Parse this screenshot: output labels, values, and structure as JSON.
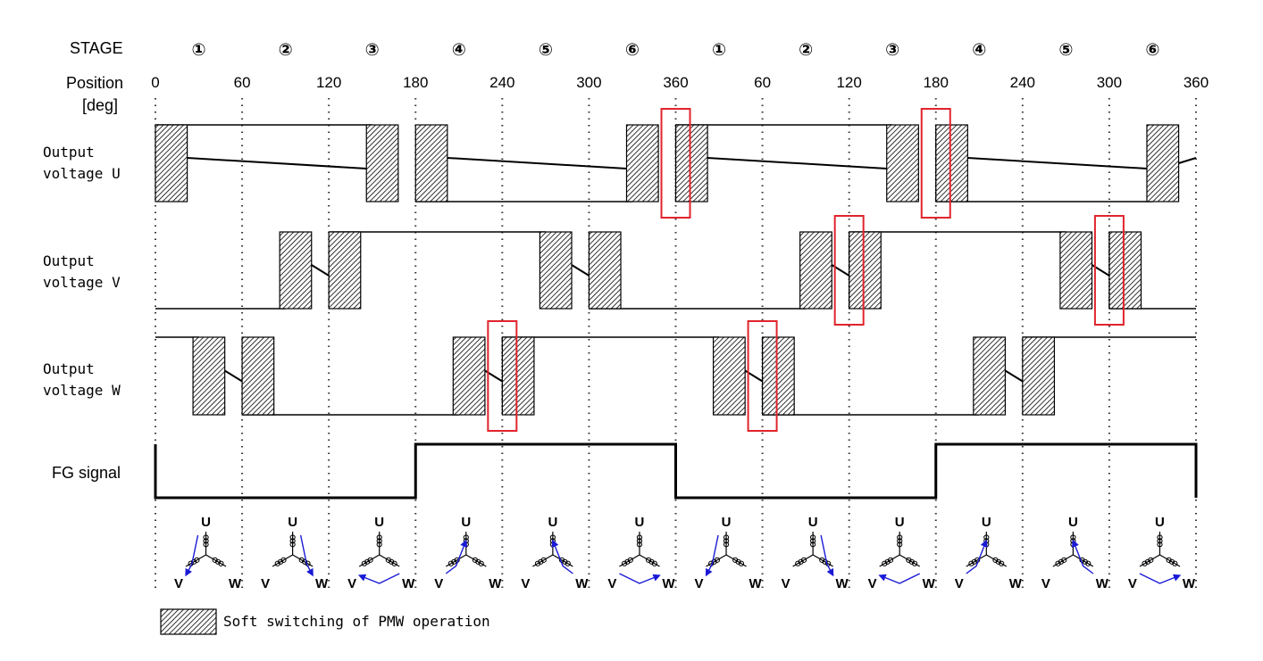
{
  "header": {
    "stage_label": "STAGE",
    "position_label": "Position",
    "position_unit": "[deg]"
  },
  "stages": [
    "①",
    "②",
    "③",
    "④",
    "⑤",
    "⑥",
    "①",
    "②",
    "③",
    "④",
    "⑤",
    "⑥"
  ],
  "positions": [
    "0",
    "60",
    "120",
    "180",
    "240",
    "300",
    "360",
    "60",
    "120",
    "180",
    "240",
    "300",
    "360"
  ],
  "rows": {
    "u": [
      "Output",
      "voltage U"
    ],
    "v": [
      "Output",
      "voltage V"
    ],
    "w": [
      "Output",
      "voltage W"
    ],
    "fg": "FG signal"
  },
  "coil_labels": {
    "u": "U",
    "v": "V",
    "w": "W"
  },
  "legend": {
    "text": "Soft switching of PMW operation"
  },
  "colors": {
    "highlight": "#e0242c",
    "current_arrow": "#1a1ad6",
    "line": "#000000"
  },
  "chart_data": {
    "type": "timing",
    "x_unit": "deg",
    "x_range": [
      0,
      720
    ],
    "stage_width_deg": 60,
    "phase_u": {
      "levels": [
        {
          "from": 0,
          "to": 150,
          "level": "high"
        },
        {
          "from": 180,
          "to": 330,
          "level": "low"
        },
        {
          "from": 360,
          "to": 510,
          "level": "high"
        },
        {
          "from": 540,
          "to": 690,
          "level": "low"
        }
      ],
      "pwm_blocks": [
        [
          0,
          22
        ],
        [
          146,
          168
        ],
        [
          180,
          202
        ],
        [
          326,
          348
        ],
        [
          360,
          382
        ],
        [
          506,
          528
        ],
        [
          540,
          562
        ],
        [
          686,
          708
        ]
      ],
      "soft_switch_marks": [
        360,
        540
      ]
    },
    "phase_v": {
      "levels": [
        {
          "from": 0,
          "to": 90,
          "level": "low"
        },
        {
          "from": 120,
          "to": 270,
          "level": "high"
        },
        {
          "from": 300,
          "to": 450,
          "level": "low"
        },
        {
          "from": 480,
          "to": 630,
          "level": "high"
        },
        {
          "from": 660,
          "to": 720,
          "level": "low"
        }
      ],
      "pwm_blocks": [
        [
          86,
          108
        ],
        [
          120,
          142
        ],
        [
          266,
          288
        ],
        [
          300,
          322
        ],
        [
          446,
          468
        ],
        [
          480,
          502
        ],
        [
          626,
          648
        ],
        [
          660,
          682
        ]
      ],
      "soft_switch_marks": [
        480,
        660
      ]
    },
    "phase_w": {
      "levels": [
        {
          "from": 0,
          "to": 30,
          "level": "high"
        },
        {
          "from": 60,
          "to": 210,
          "level": "low"
        },
        {
          "from": 240,
          "to": 390,
          "level": "high"
        },
        {
          "from": 420,
          "to": 570,
          "level": "low"
        },
        {
          "from": 600,
          "to": 720,
          "level": "high"
        }
      ],
      "pwm_blocks": [
        [
          26,
          48
        ],
        [
          60,
          82
        ],
        [
          206,
          228
        ],
        [
          240,
          262
        ],
        [
          386,
          408
        ],
        [
          420,
          442
        ],
        [
          566,
          588
        ],
        [
          600,
          622
        ]
      ],
      "soft_switch_marks": [
        240,
        420
      ]
    },
    "fg_signal": [
      {
        "from": 0,
        "to": 180,
        "level": "low"
      },
      {
        "from": 180,
        "to": 360,
        "level": "high"
      },
      {
        "from": 360,
        "to": 540,
        "level": "low"
      },
      {
        "from": 540,
        "to": 720,
        "level": "high"
      }
    ],
    "current_paths": [
      "U-V",
      "U-W",
      "W-V",
      "V-U",
      "W-U",
      "V-W",
      "U-V",
      "U-W",
      "W-V",
      "V-U",
      "W-U",
      "V-W"
    ]
  }
}
